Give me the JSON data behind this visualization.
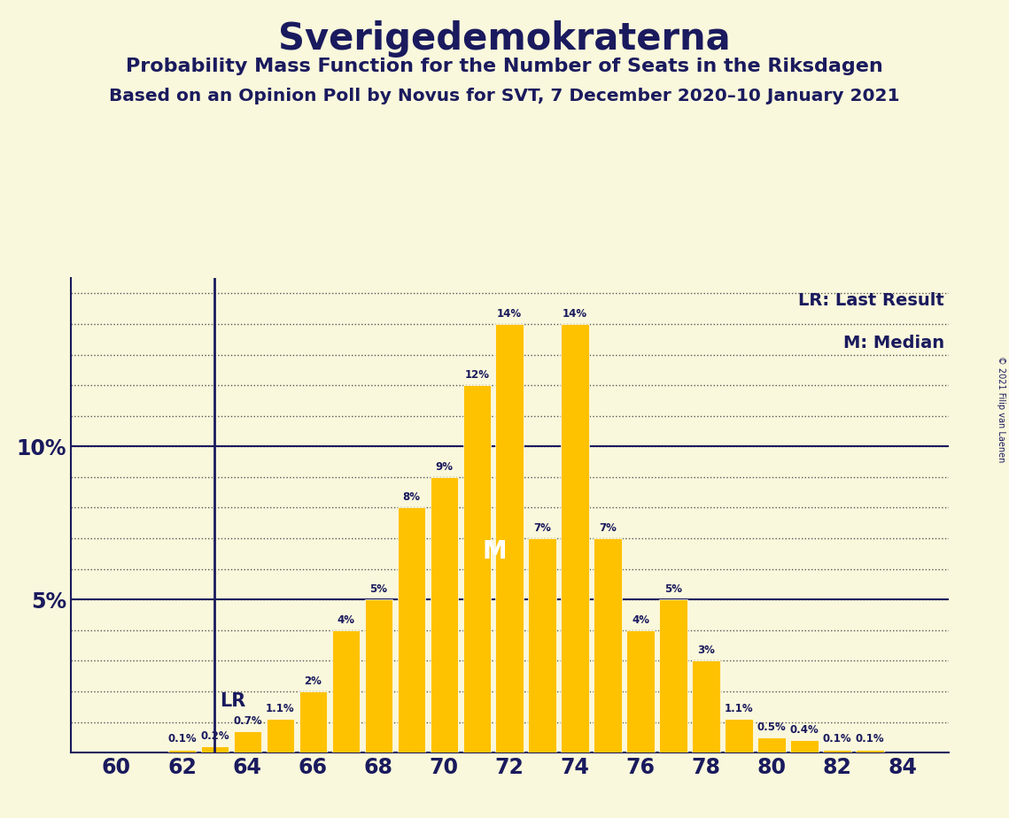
{
  "title": "Sverigedemokraterna",
  "subtitle1": "Probability Mass Function for the Number of Seats in the Riksdagen",
  "subtitle2": "Based on an Opinion Poll by Novus for SVT, 7 December 2020–10 January 2021",
  "copyright": "© 2021 Filip van Laenen",
  "seats": [
    60,
    61,
    62,
    63,
    64,
    65,
    66,
    67,
    68,
    69,
    70,
    71,
    72,
    73,
    74,
    75,
    76,
    77,
    78,
    79,
    80,
    81,
    82,
    83,
    84
  ],
  "probabilities": [
    0.0,
    0.0,
    0.1,
    0.2,
    0.7,
    1.1,
    2.0,
    4.0,
    5.0,
    8.0,
    9.0,
    12.0,
    14.0,
    7.0,
    14.0,
    7.0,
    4.0,
    5.0,
    3.0,
    1.1,
    0.5,
    0.4,
    0.1,
    0.1,
    0.0
  ],
  "bar_color": "#FFC200",
  "background_color": "#FAF8DC",
  "text_color": "#1a1a5e",
  "lr_seat": 63,
  "median_seat": 72,
  "legend_lr": "LR: Last Result",
  "legend_m": "M: Median",
  "bar_width": 0.85
}
